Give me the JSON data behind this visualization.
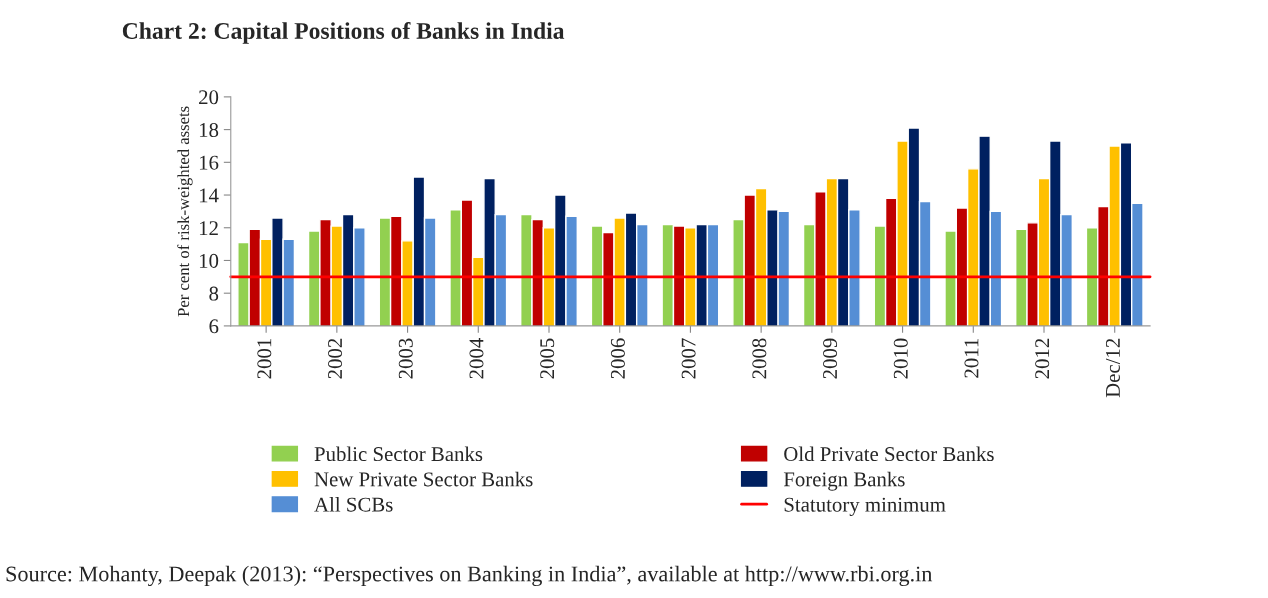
{
  "chart_data": {
    "type": "bar",
    "title": "Chart 2: Capital Positions of Banks in India",
    "ylabel": "Per cent of risk-weighted assets",
    "categories": [
      "2001",
      "2002",
      "2003",
      "2004",
      "2005",
      "2006",
      "2007",
      "2008",
      "2009",
      "2010",
      "2011",
      "2012",
      "Dec/12"
    ],
    "series": [
      {
        "name": "Public Sector Banks",
        "color": "#92d050",
        "values": [
          11.1,
          11.8,
          12.6,
          13.1,
          12.8,
          12.1,
          12.2,
          12.5,
          12.2,
          12.1,
          11.8,
          11.9,
          12.0
        ]
      },
      {
        "name": "Old Private Sector Banks",
        "color": "#c00000",
        "values": [
          11.9,
          12.5,
          12.7,
          13.7,
          12.5,
          11.7,
          12.1,
          14.0,
          14.2,
          13.8,
          13.2,
          12.3,
          13.3
        ]
      },
      {
        "name": "New Private Sector Banks",
        "color": "#ffc000",
        "values": [
          11.3,
          12.1,
          11.2,
          10.2,
          12.0,
          12.6,
          12.0,
          14.4,
          15.0,
          17.3,
          15.6,
          15.0,
          17.0
        ]
      },
      {
        "name": "Foreign Banks",
        "color": "#002060",
        "values": [
          12.6,
          12.8,
          15.1,
          15.0,
          14.0,
          12.9,
          12.2,
          13.1,
          15.0,
          18.1,
          17.6,
          17.3,
          17.2
        ]
      },
      {
        "name": "All SCBs",
        "color": "#558ed5",
        "values": [
          11.3,
          12.0,
          12.6,
          12.8,
          12.7,
          12.2,
          12.2,
          13.0,
          13.1,
          13.6,
          13.0,
          12.8,
          13.5
        ]
      }
    ],
    "ref_lines": [
      {
        "axis": "y",
        "value": 9,
        "label": "Statutory minimum",
        "color": "#ff0000",
        "line_style": "solid"
      }
    ],
    "ylim": [
      6,
      20
    ],
    "yticks": [
      6,
      8,
      10,
      12,
      14,
      16,
      18,
      20
    ],
    "grid": false,
    "legend": "bottom",
    "annotations": [
      "Source: Mohanty, Deepak (2013): “Perspectives on Banking in India”, available at http://www.rbi.org.in"
    ]
  }
}
